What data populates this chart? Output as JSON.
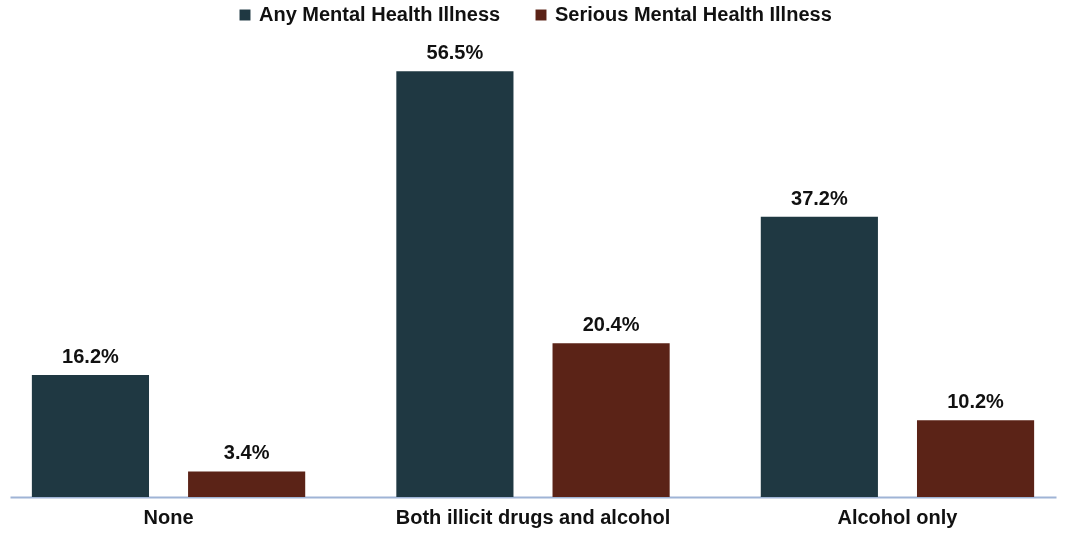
{
  "chart_data": {
    "type": "bar",
    "categories": [
      "None",
      "Both illicit drugs and alcohol",
      "Alcohol only"
    ],
    "series": [
      {
        "name": "Any Mental Health Illness",
        "color": "#1f3842",
        "values": [
          16.2,
          56.5,
          37.2
        ],
        "value_labels": [
          "16.2%",
          "56.5%",
          "37.2%"
        ]
      },
      {
        "name": "Serious Mental Health Illness",
        "color": "#5b2317",
        "values": [
          3.4,
          20.4,
          10.2
        ],
        "value_labels": [
          "3.4%",
          "20.4%",
          "10.2%"
        ]
      }
    ],
    "legend": "top"
  }
}
